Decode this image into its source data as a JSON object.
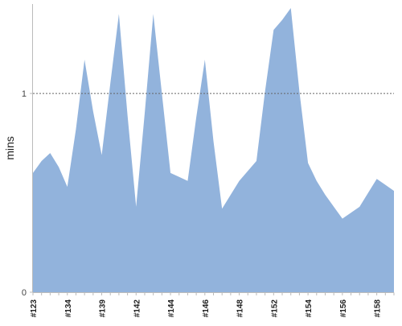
{
  "chart_data": {
    "type": "area",
    "title": "",
    "xlabel": "",
    "ylabel": "mins",
    "ylim": [
      0,
      1.45
    ],
    "grid": false,
    "reference_line": {
      "y": 1
    },
    "y_ticks": [
      {
        "value": 0,
        "label": "0"
      },
      {
        "value": 1,
        "label": "1"
      }
    ],
    "x_tick_labels": [
      {
        "index": 0,
        "label": "#123"
      },
      {
        "index": 2,
        "label": "#134"
      },
      {
        "index": 4,
        "label": "#139"
      },
      {
        "index": 6,
        "label": "#142"
      },
      {
        "index": 8,
        "label": "#144"
      },
      {
        "index": 10,
        "label": "#146"
      },
      {
        "index": 12,
        "label": "#148"
      },
      {
        "index": 14,
        "label": "#152"
      },
      {
        "index": 16,
        "label": "#154"
      },
      {
        "index": 18,
        "label": "#156"
      },
      {
        "index": 20,
        "label": "#158"
      }
    ],
    "series": [
      {
        "color": "#92b3dc",
        "values": [
          0.6,
          0.66,
          0.7,
          0.63,
          0.53,
          0.82,
          1.17,
          0.91,
          0.69,
          1.05,
          1.4,
          0.89,
          0.43,
          0.9,
          1.4,
          1.0,
          0.6,
          0.58,
          0.56,
          0.88,
          1.17,
          0.76,
          0.42,
          0.49,
          0.56,
          0.61,
          0.66,
          1.01,
          1.32,
          1.37,
          1.43,
          1.01,
          0.65,
          0.56,
          0.49,
          0.43,
          0.37,
          0.4,
          0.43,
          0.5,
          0.57,
          0.54,
          0.51
        ]
      }
    ]
  }
}
